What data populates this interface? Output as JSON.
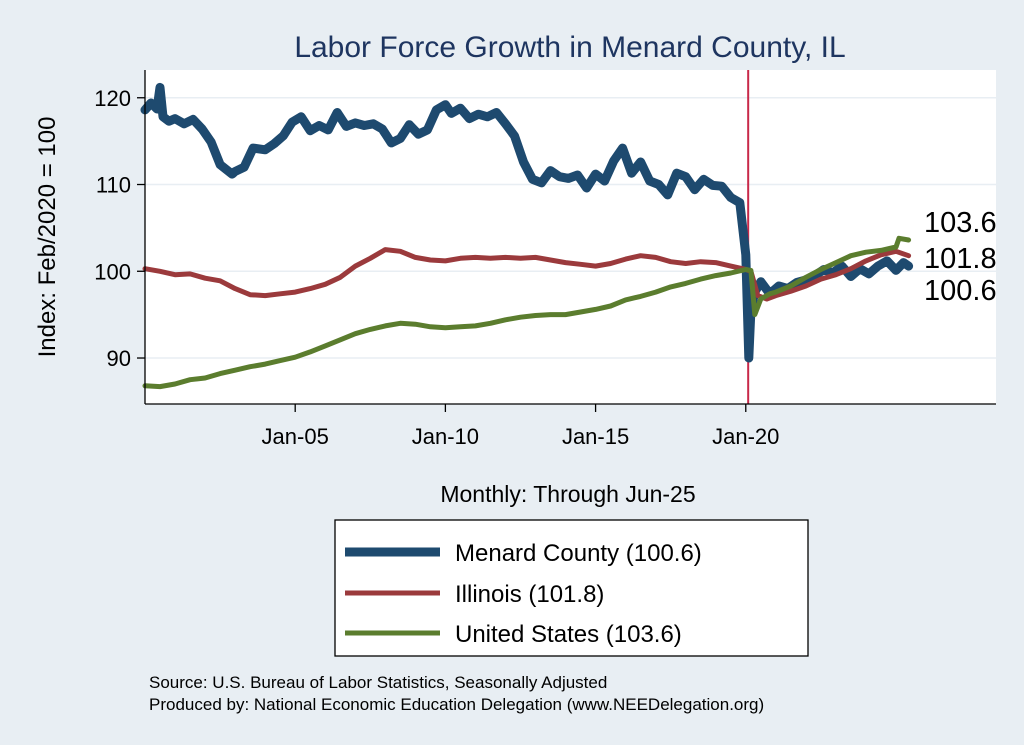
{
  "chart_data": {
    "type": "line",
    "title": "Labor Force Growth in Menard  County, IL",
    "ylabel": "Index: Feb/2020 = 100",
    "xlabel": "Monthly: Through Jun-25",
    "ylim": [
      84.7,
      123.2
    ],
    "xlim": [
      2000.0,
      2028.33
    ],
    "yticks": [
      90,
      100,
      110,
      120
    ],
    "xticks": [
      {
        "value": 2005.0,
        "label": "Jan-05"
      },
      {
        "value": 2010.0,
        "label": "Jan-10"
      },
      {
        "value": 2015.0,
        "label": "Jan-15"
      },
      {
        "value": 2020.0,
        "label": "Jan-20"
      }
    ],
    "vline": 2020.08,
    "grid": "horizontal",
    "series": [
      {
        "name": "Menard  County",
        "legend": "Menard  County (100.6)",
        "end_label": "100.6",
        "color": "#1e4a6f",
        "width": 9,
        "x": [
          2000.0,
          2000.2,
          2000.4,
          2000.5,
          2000.6,
          2000.8,
          2001.0,
          2001.3,
          2001.6,
          2001.9,
          2002.2,
          2002.5,
          2002.9,
          2003.0,
          2003.3,
          2003.6,
          2004.0,
          2004.3,
          2004.6,
          2004.9,
          2005.2,
          2005.5,
          2005.8,
          2006.1,
          2006.4,
          2006.7,
          2007.0,
          2007.3,
          2007.6,
          2007.9,
          2008.2,
          2008.5,
          2008.8,
          2009.1,
          2009.4,
          2009.7,
          2010.0,
          2010.2,
          2010.5,
          2010.8,
          2011.1,
          2011.4,
          2011.7,
          2012.0,
          2012.3,
          2012.6,
          2012.9,
          2013.2,
          2013.5,
          2013.8,
          2014.1,
          2014.4,
          2014.7,
          2015.0,
          2015.3,
          2015.6,
          2015.9,
          2016.2,
          2016.5,
          2016.8,
          2017.1,
          2017.4,
          2017.7,
          2018.0,
          2018.3,
          2018.6,
          2018.9,
          2019.2,
          2019.5,
          2019.8,
          2020.0,
          2020.1,
          2020.17,
          2020.3,
          2020.5,
          2020.8,
          2021.1,
          2021.4,
          2021.7,
          2022.0,
          2022.3,
          2022.6,
          2022.9,
          2023.2,
          2023.5,
          2023.8,
          2024.1,
          2024.4,
          2024.7,
          2025.0,
          2025.25,
          2025.42
        ],
        "values": [
          118.6,
          119.4,
          118.7,
          121.2,
          117.8,
          117.3,
          117.6,
          117.0,
          117.5,
          116.4,
          114.9,
          112.3,
          111.2,
          111.5,
          112.0,
          114.2,
          114.0,
          114.7,
          115.6,
          117.2,
          117.8,
          116.2,
          116.8,
          116.3,
          118.3,
          116.7,
          117.1,
          116.8,
          117.0,
          116.4,
          114.8,
          115.3,
          116.9,
          115.8,
          116.3,
          118.6,
          119.2,
          118.2,
          118.8,
          117.6,
          118.1,
          117.8,
          118.3,
          117.0,
          115.6,
          112.6,
          110.6,
          110.2,
          111.6,
          110.9,
          110.7,
          111.1,
          109.6,
          111.2,
          110.4,
          112.7,
          114.2,
          111.3,
          112.6,
          110.4,
          110.0,
          108.8,
          111.3,
          110.9,
          109.4,
          110.6,
          109.9,
          109.8,
          108.5,
          107.9,
          101.9,
          90.0,
          95.5,
          97.6,
          98.8,
          97.4,
          98.3,
          98.0,
          98.7,
          99.0,
          99.5,
          100.2,
          99.8,
          100.6,
          99.4,
          100.3,
          99.7,
          100.6,
          101.2,
          100.1,
          101.0,
          100.6
        ]
      },
      {
        "name": "Illinois",
        "legend": "Illinois (101.8)",
        "end_label": "101.8",
        "color": "#9b3a3c",
        "width": 5,
        "x": [
          2000.0,
          2000.5,
          2001.0,
          2001.5,
          2002.0,
          2002.5,
          2003.0,
          2003.5,
          2004.0,
          2004.5,
          2005.0,
          2005.5,
          2006.0,
          2006.5,
          2007.0,
          2007.5,
          2008.0,
          2008.5,
          2009.0,
          2009.5,
          2010.0,
          2010.5,
          2011.0,
          2011.5,
          2012.0,
          2012.5,
          2013.0,
          2013.5,
          2014.0,
          2014.5,
          2015.0,
          2015.5,
          2016.0,
          2016.5,
          2017.0,
          2017.5,
          2018.0,
          2018.5,
          2019.0,
          2019.5,
          2020.0,
          2020.17,
          2020.4,
          2020.7,
          2021.0,
          2021.5,
          2022.0,
          2022.5,
          2023.0,
          2023.5,
          2024.0,
          2024.5,
          2025.0,
          2025.42
        ],
        "values": [
          100.3,
          100.0,
          99.6,
          99.7,
          99.2,
          98.9,
          98.0,
          97.3,
          97.2,
          97.4,
          97.6,
          98.0,
          98.5,
          99.3,
          100.6,
          101.5,
          102.5,
          102.3,
          101.6,
          101.3,
          101.2,
          101.5,
          101.6,
          101.5,
          101.6,
          101.5,
          101.6,
          101.3,
          101.0,
          100.8,
          100.6,
          100.9,
          101.4,
          101.8,
          101.6,
          101.1,
          100.9,
          101.1,
          101.0,
          100.6,
          100.2,
          100.0,
          97.2,
          96.8,
          97.2,
          97.7,
          98.3,
          99.1,
          99.6,
          100.3,
          101.2,
          101.9,
          102.3,
          101.8
        ]
      },
      {
        "name": "United States",
        "legend": "United States (103.6)",
        "end_label": "103.6",
        "color": "#5b7d2e",
        "width": 5,
        "x": [
          2000.0,
          2000.5,
          2001.0,
          2001.5,
          2002.0,
          2002.5,
          2003.0,
          2003.5,
          2004.0,
          2004.5,
          2005.0,
          2005.5,
          2006.0,
          2006.5,
          2007.0,
          2007.5,
          2008.0,
          2008.5,
          2009.0,
          2009.5,
          2010.0,
          2010.5,
          2011.0,
          2011.5,
          2012.0,
          2012.5,
          2013.0,
          2013.5,
          2014.0,
          2014.5,
          2015.0,
          2015.5,
          2016.0,
          2016.5,
          2017.0,
          2017.5,
          2018.0,
          2018.5,
          2019.0,
          2019.5,
          2020.0,
          2020.17,
          2020.3,
          2020.5,
          2020.8,
          2021.0,
          2021.5,
          2022.0,
          2022.5,
          2023.0,
          2023.5,
          2024.0,
          2024.5,
          2025.0,
          2025.1,
          2025.42
        ],
        "values": [
          86.8,
          86.7,
          87.0,
          87.5,
          87.7,
          88.2,
          88.6,
          89.0,
          89.3,
          89.7,
          90.1,
          90.7,
          91.4,
          92.1,
          92.8,
          93.3,
          93.7,
          94.0,
          93.9,
          93.6,
          93.5,
          93.6,
          93.7,
          94.0,
          94.4,
          94.7,
          94.9,
          95.0,
          95.0,
          95.3,
          95.6,
          96.0,
          96.7,
          97.1,
          97.6,
          98.2,
          98.6,
          99.1,
          99.5,
          99.8,
          100.2,
          100.1,
          95.0,
          96.8,
          97.4,
          97.6,
          98.3,
          99.3,
          100.2,
          101.0,
          101.8,
          102.2,
          102.4,
          102.8,
          103.8,
          103.6
        ]
      }
    ]
  },
  "source_line1": "Source: U.S. Bureau of Labor Statistics, Seasonally Adjusted",
  "source_line2": "Produced by: National Economic Education Delegation (www.NEEDelegation.org)"
}
